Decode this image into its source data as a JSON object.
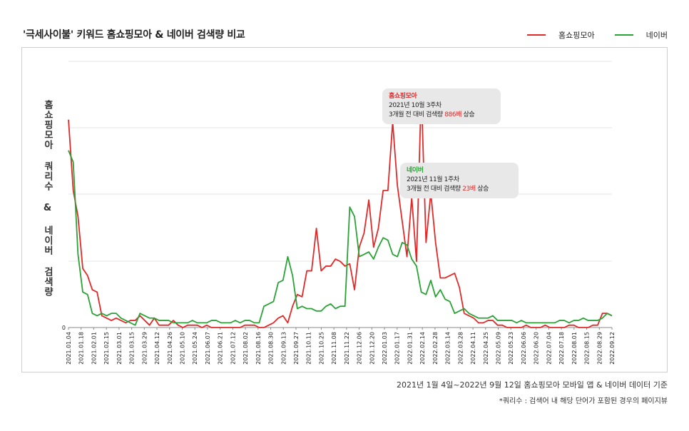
{
  "title": "'극세사이불' 키워드 홈쇼핑모아 & 네이버 검색량 비교",
  "legend": [
    {
      "label": "홈쇼핑모아",
      "color": "#e02a2a"
    },
    {
      "label": "네이버",
      "color": "#2aa236"
    }
  ],
  "ylabel": "홈쇼핑모아 쿼리수 & 네이버 검색량",
  "tooltips": {
    "homeshopping": {
      "title": "홈쇼핑모아",
      "line1": "2021년 10월 3주차",
      "pre": "3개월 전 대비 검색량 ",
      "highlight": "886배",
      "post": " 상승"
    },
    "naver": {
      "title": "네이버",
      "line1": "2021년 11월 1주차",
      "pre": "3개월 전 대비 검색량 ",
      "highlight": "23배",
      "post": " 상승"
    }
  },
  "footer": {
    "source": "2021년 1월 4일~2022년 9월 12일 홈쇼핑모아 모바일 앱 & 네이버 데이터 기준",
    "note": "*쿼리수 : 검색어 내 해당 단어가 포함된 경우의 페이지뷰"
  },
  "chart_data": {
    "type": "line",
    "y_tick_label": "0",
    "grid": true,
    "ylim": [
      0,
      100
    ],
    "x_tick_labels": [
      "2021.01.04",
      "2021.01.18",
      "2021.02.01",
      "2021.02.15",
      "2021.03.01",
      "2021.03.15",
      "2021.03.29",
      "2021.04.12",
      "2021.04.26",
      "2021.05.10",
      "2021.05.24",
      "2021.06.07",
      "2021.06.21",
      "2021.07.12",
      "2021.08.02",
      "2021.08.16",
      "2021.08.30",
      "2021.09.13",
      "2021.09.27",
      "2021.10.11",
      "2021.10.25",
      "2021.11.08",
      "2021.11.22",
      "2021.12.06",
      "2021.12.20",
      "2022.01.03",
      "2022.01.17",
      "2022.01.31",
      "2022.02.14",
      "2022.02.28",
      "2022.03.14",
      "2022.03.28",
      "2022.04.11",
      "2022.04.25",
      "2022.05.09",
      "2022.05.23",
      "2022.06.06",
      "2022.06.20",
      "2022.07.04",
      "2022.07.18",
      "2022.08.01",
      "2022.08.15",
      "2022.08.29",
      "2022.09.12"
    ],
    "series": [
      {
        "name": "홈쇼핑모아",
        "color": "#e02a2a",
        "values": [
          88,
          58,
          47,
          25,
          22,
          16,
          15,
          5,
          4,
          3,
          4,
          3,
          2,
          3,
          3,
          5,
          3,
          1,
          4,
          1,
          1,
          1,
          3,
          1,
          0,
          1,
          1,
          1,
          0,
          1,
          0,
          0,
          0,
          0,
          0,
          0,
          0,
          1,
          1,
          1,
          0,
          0,
          1,
          2,
          4,
          5,
          2,
          9,
          14,
          13,
          24,
          24,
          42,
          24,
          26,
          26,
          29,
          28,
          26,
          27,
          16,
          34,
          40,
          54,
          34,
          42,
          58,
          58,
          87,
          60,
          45,
          30,
          55,
          28,
          100,
          36,
          57,
          36,
          21,
          21,
          22,
          23,
          17,
          6,
          5,
          4,
          2,
          2,
          3,
          3,
          1,
          1,
          0,
          0,
          0,
          0,
          1,
          0,
          0,
          0,
          1,
          0,
          0,
          0,
          0,
          1,
          1,
          0,
          0,
          0,
          1,
          1,
          6,
          6,
          5
        ]
      },
      {
        "name": "네이버",
        "color": "#2aa236",
        "values": [
          75,
          70,
          31,
          15,
          14,
          6,
          5,
          6,
          5,
          6,
          6,
          4,
          3,
          2,
          1,
          6,
          5,
          4,
          4,
          3,
          3,
          3,
          2,
          2,
          2,
          2,
          3,
          2,
          2,
          2,
          3,
          3,
          2,
          2,
          2,
          3,
          2,
          3,
          3,
          2,
          2,
          9,
          10,
          11,
          19,
          20,
          30,
          22,
          8,
          9,
          8,
          8,
          7,
          7,
          9,
          10,
          8,
          9,
          9,
          51,
          47,
          30,
          31,
          32,
          29,
          34,
          38,
          37,
          31,
          30,
          36,
          35,
          29,
          26,
          15,
          14,
          20,
          13,
          16,
          12,
          11,
          6,
          7,
          8,
          6,
          5,
          4,
          4,
          4,
          5,
          3,
          3,
          3,
          3,
          2,
          3,
          2,
          2,
          2,
          2,
          2,
          2,
          2,
          3,
          3,
          2,
          3,
          3,
          4,
          3,
          3,
          3,
          4,
          6,
          5
        ]
      }
    ]
  }
}
